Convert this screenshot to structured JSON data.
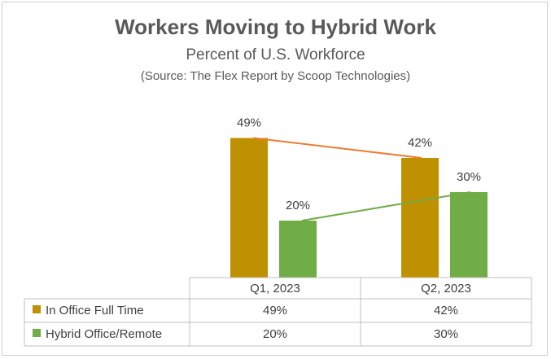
{
  "chart_data": {
    "type": "bar",
    "title": "Workers Moving to Hybrid Work",
    "subtitle": "Percent of U.S. Workforce",
    "source": "(Source: The Flex Report by Scoop Technologies)",
    "categories": [
      "Q1, 2023",
      "Q2, 2023"
    ],
    "series": [
      {
        "name": "In Office Full Time",
        "values": [
          49,
          42
        ],
        "labels": [
          "49%",
          "42%"
        ],
        "color": "#bf9000",
        "trend_color": "#ed7d31"
      },
      {
        "name": "Hybrid Office/Remote",
        "values": [
          20,
          30
        ],
        "labels": [
          "20%",
          "30%"
        ],
        "color": "#70ad47",
        "trend_color": "#70ad47"
      }
    ],
    "ylim": [
      0,
      60
    ],
    "grid": false,
    "legend": "data-table",
    "data_table": true
  }
}
